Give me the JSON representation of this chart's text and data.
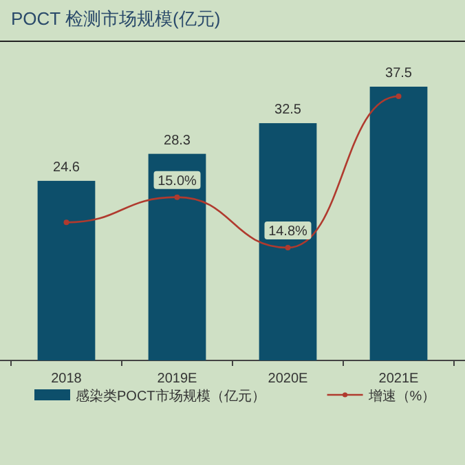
{
  "chart_data": {
    "type": "bar",
    "title": "POCT 检测市场规模(亿元)",
    "categories": [
      "2018",
      "2019E",
      "2020E",
      "2021E"
    ],
    "legend": "bottom",
    "series": [
      {
        "name": "感染类POCT市场规模（亿元）",
        "color": "#0d4f6b",
        "values": [
          24.6,
          28.3,
          32.5,
          37.5
        ],
        "value_labels": [
          "24.6",
          "28.3",
          "32.5",
          "37.5"
        ]
      },
      {
        "type": "line",
        "axis": "y2",
        "name": "增速（%）",
        "color": "#b03a2e",
        "values": [
          14.9,
          15.0,
          14.8,
          15.4
        ],
        "value_labels": [
          null,
          "15.0%",
          "14.8%",
          null
        ],
        "marker": "circle"
      }
    ],
    "tick_labels": "x"
  }
}
